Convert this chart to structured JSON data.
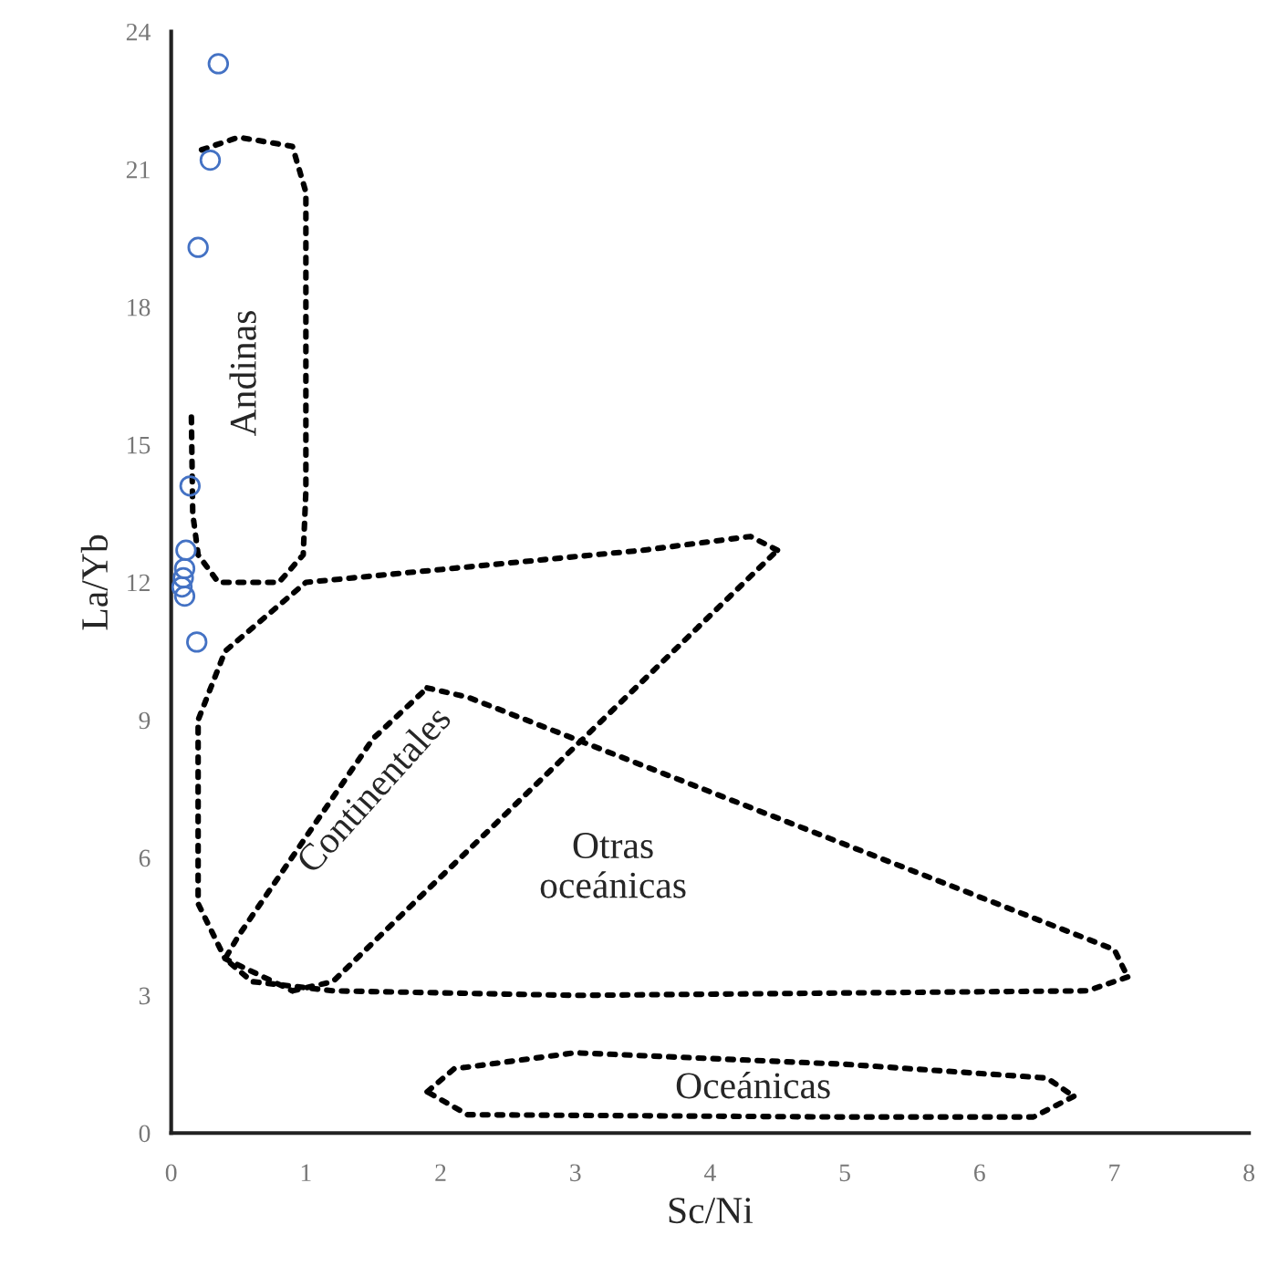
{
  "chart_data": {
    "type": "scatter",
    "xlabel": "Sc/Ni",
    "ylabel": "La/Yb",
    "xlim": [
      0,
      8
    ],
    "ylim": [
      0,
      24
    ],
    "xticks": [
      0,
      1,
      2,
      3,
      4,
      5,
      6,
      7,
      8
    ],
    "yticks": [
      0,
      3,
      6,
      9,
      12,
      15,
      18,
      21,
      24
    ],
    "grid": false,
    "series": [
      {
        "color": "#4472c4",
        "marker": "circle",
        "x": [
          0.35,
          0.29,
          0.2,
          0.14,
          0.11,
          0.1,
          0.09,
          0.08,
          0.1,
          0.19
        ],
        "values": [
          23.3,
          21.2,
          19.3,
          14.1,
          12.7,
          12.3,
          12.1,
          11.9,
          11.7,
          10.7
        ]
      },
      {
        "type": "line",
        "marker": "none",
        "line_style": "dotted",
        "color": "#000000",
        "x": [
          0.15,
          0.16,
          0.2,
          0.35,
          0.8,
          0.98,
          1.0,
          1.0,
          0.9,
          0.5,
          0.2
        ],
        "values": [
          15.6,
          13.5,
          12.6,
          12.0,
          12.0,
          12.6,
          14.0,
          20.5,
          21.5,
          21.7,
          21.4
        ]
      },
      {
        "type": "line",
        "marker": "none",
        "line_style": "dotted",
        "color": "#000000",
        "x": [
          4.5,
          4.3,
          3.5,
          1.0,
          0.4,
          0.2,
          0.2,
          0.4,
          0.9
        ],
        "values": [
          12.7,
          13.0,
          12.7,
          12.0,
          10.5,
          9.0,
          5.0,
          3.8,
          3.1
        ]
      },
      {
        "type": "line",
        "marker": "none",
        "line_style": "dotted",
        "color": "#000000",
        "x": [
          0.9,
          1.2,
          4.5
        ],
        "values": [
          3.1,
          3.3,
          12.7
        ]
      },
      {
        "type": "line",
        "marker": "none",
        "line_style": "dotted",
        "color": "#000000",
        "x": [
          1.9,
          2.2,
          7.0,
          7.1
        ],
        "values": [
          9.7,
          9.5,
          4.0,
          3.4
        ]
      },
      {
        "type": "line",
        "marker": "none",
        "line_style": "dotted",
        "color": "#000000",
        "x": [
          7.1,
          6.8,
          3.0,
          1.2,
          0.6,
          0.4,
          0.5,
          1.5,
          1.9
        ],
        "values": [
          3.4,
          3.1,
          3.0,
          3.1,
          3.3,
          3.8,
          4.3,
          8.6,
          9.7
        ]
      },
      {
        "type": "line",
        "marker": "none",
        "line_style": "dotted",
        "color": "#000000",
        "x": [
          1.9,
          2.1,
          3.0,
          5.0,
          6.5,
          6.7
        ],
        "values": [
          0.9,
          1.4,
          1.75,
          1.5,
          1.2,
          0.8
        ]
      },
      {
        "type": "line",
        "marker": "none",
        "line_style": "dotted",
        "color": "#000000",
        "x": [
          6.7,
          6.4,
          5.0,
          2.2,
          1.9
        ],
        "values": [
          0.8,
          0.35,
          0.35,
          0.4,
          0.9
        ]
      }
    ],
    "annotations": [
      "Andinas",
      "Continentales",
      "Otras\noceánicas",
      "Oceánicas"
    ]
  }
}
